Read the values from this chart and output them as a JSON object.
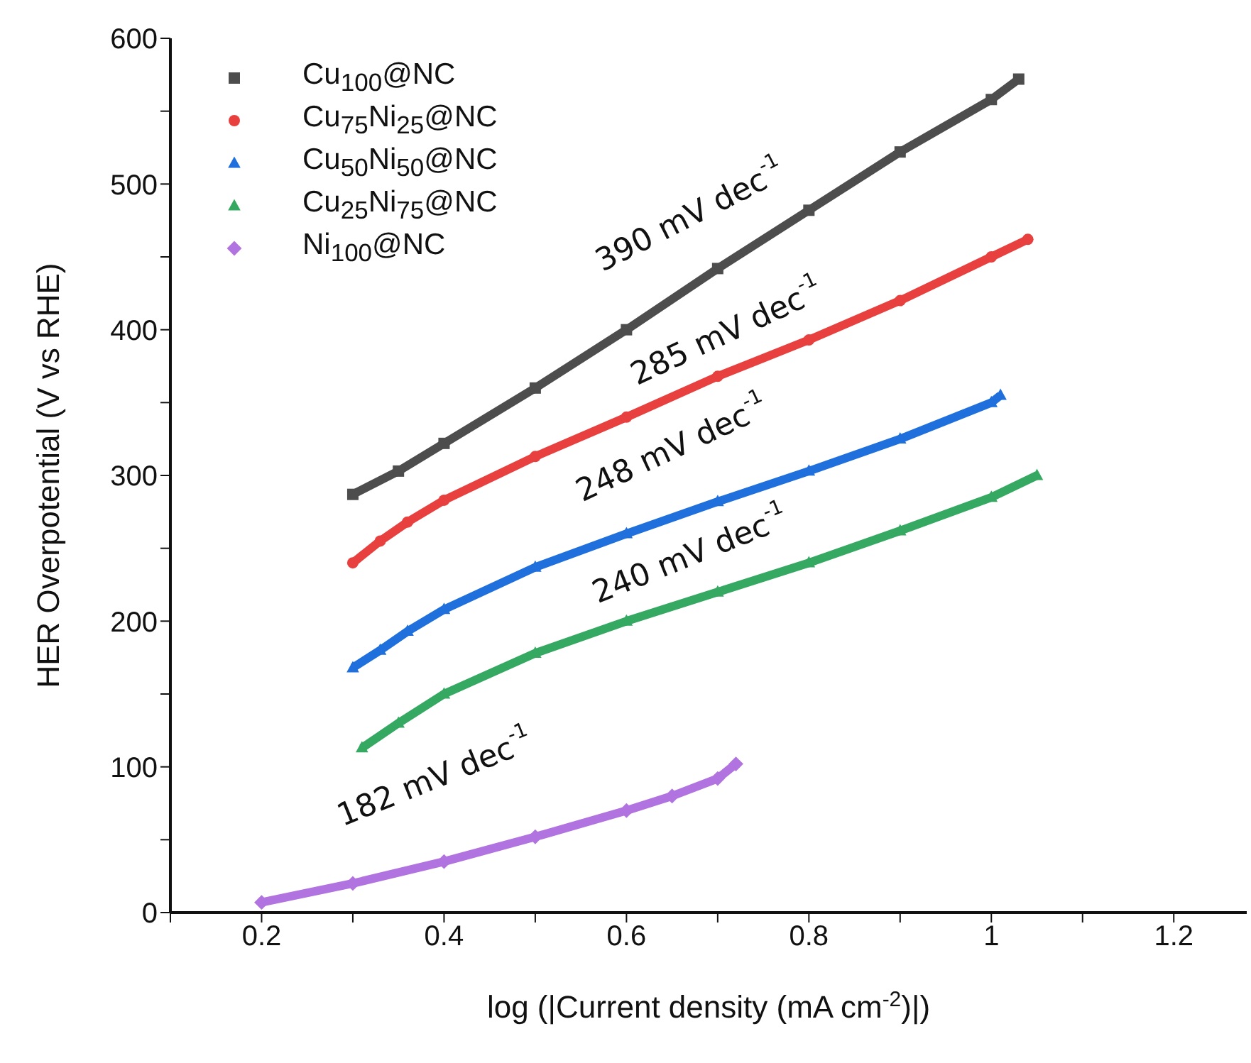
{
  "chart_data": {
    "type": "line",
    "xlabel": "log (|Current density (mA cm$^{-2}$)|)",
    "ylabel": "HER Overpotential (V vs RHE)",
    "xlim": [
      0.1,
      1.28
    ],
    "xticks": [
      {
        "value": 0.1,
        "label": null
      },
      0.2,
      {
        "value": 0.3,
        "label": null
      },
      0.4,
      {
        "value": 0.5,
        "label": null
      },
      0.6,
      {
        "value": 0.7,
        "label": null
      },
      0.8,
      {
        "value": 0.9,
        "label": null
      },
      1,
      {
        "value": 1.1,
        "label": null
      },
      1.2
    ],
    "ylim": [
      0,
      600
    ],
    "yticks": [
      0,
      {
        "value": 50,
        "label": null
      },
      100,
      {
        "value": 150,
        "label": null
      },
      200,
      {
        "value": 250,
        "label": null
      },
      300,
      {
        "value": 350,
        "label": null
      },
      400,
      {
        "value": 450,
        "label": null
      },
      500,
      {
        "value": 550,
        "label": null
      },
      600
    ],
    "grid": false,
    "legend": "top left",
    "series": [
      {
        "name": "Cu$_{100}$@NC",
        "color": "#4d4d4d",
        "marker": "square",
        "x": [
          0.3,
          0.35,
          0.4,
          0.5,
          0.6,
          0.7,
          0.8,
          0.9,
          1.0,
          1.03
        ],
        "values": [
          287,
          303,
          322,
          360,
          400,
          442,
          482,
          522,
          558,
          572
        ]
      },
      {
        "name": "Cu$_{75}$Ni$_{25}$@NC",
        "color": "#e8403f",
        "marker": "circle",
        "x": [
          0.3,
          0.33,
          0.36,
          0.4,
          0.5,
          0.6,
          0.7,
          0.8,
          0.9,
          1.0,
          1.04
        ],
        "values": [
          240,
          255,
          268,
          283,
          313,
          340,
          368,
          393,
          420,
          450,
          462
        ]
      },
      {
        "name": "Cu$_{50}$Ni$_{50}$@NC",
        "color": "#1f6fdc",
        "marker": "triangle",
        "x": [
          0.3,
          0.33,
          0.36,
          0.4,
          0.5,
          0.6,
          0.7,
          0.8,
          0.9,
          1.0,
          1.01
        ],
        "values": [
          168,
          180,
          193,
          208,
          237,
          260,
          282,
          303,
          325,
          350,
          355
        ]
      },
      {
        "name": "Cu$_{25}$Ni$_{75}$@NC",
        "color": "#35a862",
        "marker": "triangle",
        "x": [
          0.31,
          0.35,
          0.4,
          0.5,
          0.6,
          0.7,
          0.8,
          0.9,
          1.0,
          1.05
        ],
        "values": [
          113,
          130,
          150,
          178,
          200,
          220,
          240,
          262,
          285,
          300
        ]
      },
      {
        "name": "Ni$_{100}$@NC",
        "color": "#b073e0",
        "marker": "diamond",
        "x": [
          0.2,
          0.3,
          0.4,
          0.5,
          0.6,
          0.65,
          0.7,
          0.72
        ],
        "values": [
          7,
          20,
          35,
          52,
          70,
          80,
          92,
          102
        ]
      }
    ],
    "annotations": [
      "390 mV dec$^{-1}$",
      "285 mV dec$^{-1}$",
      "248 mV dec$^{-1}$",
      "240 mV dec$^{-1}$",
      "182 mV dec$^{-1}$"
    ]
  }
}
